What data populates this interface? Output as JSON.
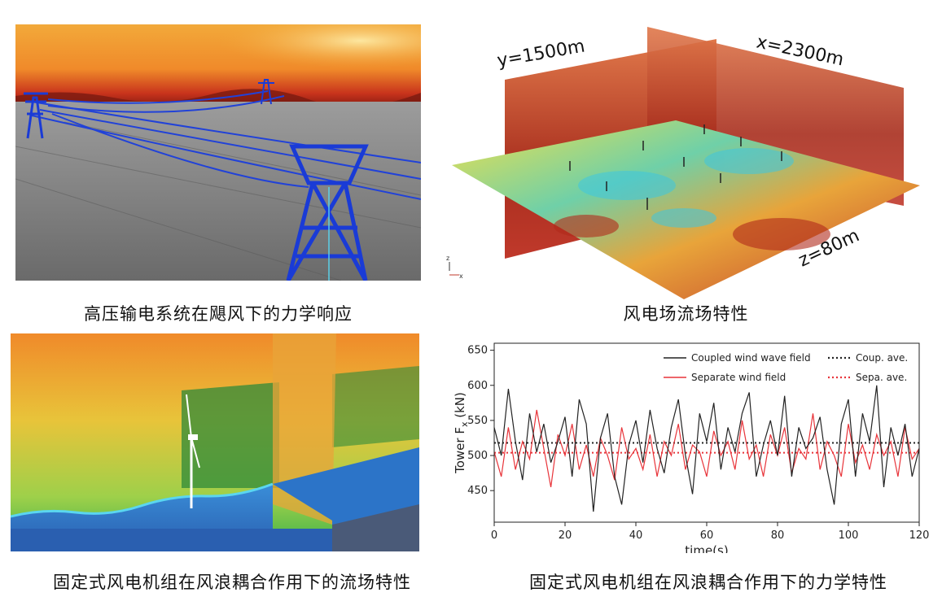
{
  "captions": {
    "top_left": "高压输电系统在飓风下的力学响应",
    "top_right": "风电场流场特性",
    "bottom_left": "固定式风电机组在风浪耦合作用下的流场特性",
    "bottom_right": "固定式风电机组在风浪耦合作用下的力学特性"
  },
  "windfarm_labels": {
    "y_plane": "y=1500m",
    "x_plane": "x=2300m",
    "z_plane": "z=80m",
    "axis_z": "z",
    "axis_x": "x"
  },
  "colors": {
    "coupled": "#222222",
    "separate": "#e8343a",
    "flow_hot": "#c0392b",
    "flow_cold": "#3ec6e0",
    "tower": "#1a3bd6"
  },
  "chart_data": {
    "type": "line",
    "xlabel": "time(s)",
    "ylabel": "Tower F",
    "ylabel_sub": "x",
    "ylabel_unit": " (kN)",
    "xlim": [
      0,
      120
    ],
    "ylim": [
      405,
      660
    ],
    "xticks": [
      0,
      20,
      40,
      60,
      80,
      100,
      120
    ],
    "yticks": [
      450,
      500,
      550,
      600,
      650
    ],
    "legend_position": "top-right",
    "grid": false,
    "x": [
      0,
      2,
      4,
      6,
      8,
      10,
      12,
      14,
      16,
      18,
      20,
      22,
      24,
      26,
      28,
      30,
      32,
      34,
      36,
      38,
      40,
      42,
      44,
      46,
      48,
      50,
      52,
      54,
      56,
      58,
      60,
      62,
      64,
      66,
      68,
      70,
      72,
      74,
      76,
      78,
      80,
      82,
      84,
      86,
      88,
      90,
      92,
      94,
      96,
      98,
      100,
      102,
      104,
      106,
      108,
      110,
      112,
      114,
      116,
      118,
      120
    ],
    "series": [
      {
        "name": "Coupled wind wave field",
        "style": "solid",
        "values": [
          540,
          500,
          595,
          520,
          465,
          560,
          505,
          545,
          490,
          520,
          555,
          470,
          580,
          545,
          420,
          525,
          560,
          470,
          430,
          515,
          550,
          490,
          565,
          510,
          475,
          540,
          580,
          500,
          445,
          560,
          520,
          575,
          480,
          540,
          505,
          560,
          590,
          470,
          515,
          550,
          500,
          585,
          470,
          540,
          510,
          525,
          555,
          480,
          430,
          545,
          580,
          470,
          560,
          520,
          600,
          455,
          540,
          500,
          545,
          470,
          510
        ]
      },
      {
        "name": "Separate wind field",
        "style": "solid",
        "values": [
          505,
          470,
          540,
          480,
          520,
          495,
          565,
          510,
          455,
          530,
          500,
          545,
          480,
          515,
          470,
          525,
          500,
          465,
          540,
          495,
          510,
          480,
          530,
          470,
          520,
          500,
          545,
          480,
          515,
          505,
          470,
          535,
          500,
          520,
          480,
          550,
          495,
          515,
          470,
          530,
          500,
          540,
          475,
          510,
          495,
          560,
          480,
          520,
          500,
          470,
          545,
          490,
          515,
          480,
          530,
          500,
          520,
          470,
          540,
          495,
          510
        ]
      },
      {
        "name": "Coup. ave.",
        "style": "dotted",
        "values": [
          518,
          518,
          518,
          518,
          518,
          518,
          518,
          518,
          518,
          518,
          518,
          518,
          518,
          518,
          518,
          518,
          518,
          518,
          518,
          518,
          518,
          518,
          518,
          518,
          518,
          518,
          518,
          518,
          518,
          518,
          518,
          518,
          518,
          518,
          518,
          518,
          518,
          518,
          518,
          518,
          518,
          518,
          518,
          518,
          518,
          518,
          518,
          518,
          518,
          518,
          518,
          518,
          518,
          518,
          518,
          518,
          518,
          518,
          518,
          518,
          518
        ]
      },
      {
        "name": "Sepa. ave.",
        "style": "dotted",
        "values": [
          504,
          504,
          504,
          504,
          504,
          504,
          504,
          504,
          504,
          504,
          504,
          504,
          504,
          504,
          504,
          504,
          504,
          504,
          504,
          504,
          504,
          504,
          504,
          504,
          504,
          504,
          504,
          504,
          504,
          504,
          504,
          504,
          504,
          504,
          504,
          504,
          504,
          504,
          504,
          504,
          504,
          504,
          504,
          504,
          504,
          504,
          504,
          504,
          504,
          504,
          504,
          504,
          504,
          504,
          504,
          504,
          504,
          504,
          504,
          504,
          504
        ]
      }
    ]
  }
}
